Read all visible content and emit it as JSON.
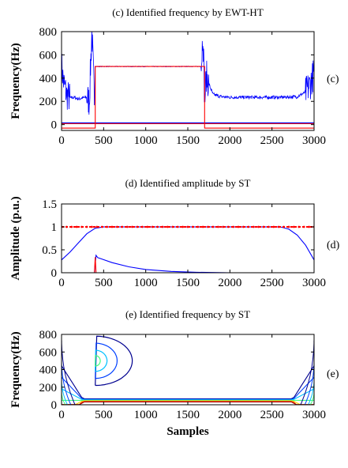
{
  "chart_data": [
    {
      "type": "line",
      "title": "(c) Identified frequency by EWT-HT",
      "ylabel": "Frequency(Hz)",
      "xlabel": "",
      "panel_tag": "(c)",
      "xlim": [
        0,
        3000
      ],
      "ylim": [
        -50,
        800
      ],
      "xticks": [
        0,
        500,
        1000,
        1500,
        2000,
        2500,
        3000
      ],
      "yticks": [
        0,
        200,
        400,
        600,
        800
      ],
      "series": [
        {
          "color": "#0000ff",
          "style": "noisy",
          "x": [
            0,
            20,
            60,
            100,
            150,
            200,
            250,
            300,
            330,
            360,
            390,
            400,
            450,
            1000,
            1600,
            1660,
            1680,
            1700,
            1720,
            1750,
            1800,
            1900,
            2000,
            2300,
            2600,
            2800,
            2900,
            2950,
            3000
          ],
          "y": [
            520,
            380,
            260,
            230,
            235,
            220,
            230,
            235,
            200,
            800,
            230,
            500,
            500,
            500,
            500,
            500,
            800,
            200,
            420,
            350,
            260,
            240,
            235,
            235,
            235,
            240,
            280,
            340,
            450
          ]
        },
        {
          "color": "#0000ff",
          "style": "flat",
          "x": [
            0,
            3000
          ],
          "y": [
            15,
            15
          ]
        },
        {
          "color": "#ff0000",
          "style": "flat",
          "x": [
            0,
            3000
          ],
          "y": [
            8,
            8
          ]
        },
        {
          "color": "#ff0000",
          "style": "flat",
          "x": [
            0,
            400,
            400,
            1700,
            1700,
            3000
          ],
          "y": [
            -30,
            -30,
            500,
            500,
            -30,
            -30
          ]
        }
      ]
    },
    {
      "type": "line",
      "title": "(d) Identified amplitude by ST",
      "ylabel": "Amplitude (p.u.)",
      "xlabel": "",
      "panel_tag": "(d)",
      "xlim": [
        0,
        3000
      ],
      "ylim": [
        0,
        1.5
      ],
      "xticks": [
        0,
        500,
        1000,
        1500,
        2000,
        2500,
        3000
      ],
      "yticks": [
        0,
        0.5,
        1,
        1.5
      ],
      "yticklabels": [
        "0",
        "0.5",
        "1",
        "1.5"
      ],
      "series": [
        {
          "color": "#0000ff",
          "style": "line",
          "x": [
            0,
            100,
            200,
            300,
            400,
            500,
            600,
            2600,
            2700,
            2800,
            2900,
            3000
          ],
          "y": [
            0.28,
            0.45,
            0.65,
            0.85,
            0.97,
            1.0,
            1.0,
            1.0,
            0.95,
            0.82,
            0.6,
            0.28
          ]
        },
        {
          "color": "#ff0000",
          "style": "dotted",
          "x": [
            0,
            3000
          ],
          "y": [
            1.0,
            1.0
          ]
        },
        {
          "color": "#0000ff",
          "style": "line",
          "x": [
            0,
            390,
            410,
            430,
            600,
            800,
            1000,
            1300,
            1600,
            2000,
            3000
          ],
          "y": [
            0.0,
            0.0,
            0.38,
            0.33,
            0.22,
            0.13,
            0.07,
            0.03,
            0.01,
            0.0,
            0.0
          ]
        },
        {
          "color": "#ff0000",
          "style": "line",
          "x": [
            0,
            390,
            400,
            410,
            3000
          ],
          "y": [
            0.0,
            0.0,
            0.34,
            0.0,
            0.0
          ]
        }
      ]
    },
    {
      "type": "contour",
      "title": "(e) Identified frequency by ST",
      "ylabel": "Frequency(Hz)",
      "xlabel": "Samples",
      "panel_tag": "(e)",
      "xlim": [
        0,
        3000
      ],
      "ylim": [
        0,
        800
      ],
      "xticks": [
        0,
        500,
        1000,
        1500,
        2000,
        2500,
        3000
      ],
      "yticks": [
        0,
        200,
        400,
        600,
        800
      ],
      "band_frequency": 50,
      "component_frequency": 500,
      "component_start": 400
    }
  ]
}
